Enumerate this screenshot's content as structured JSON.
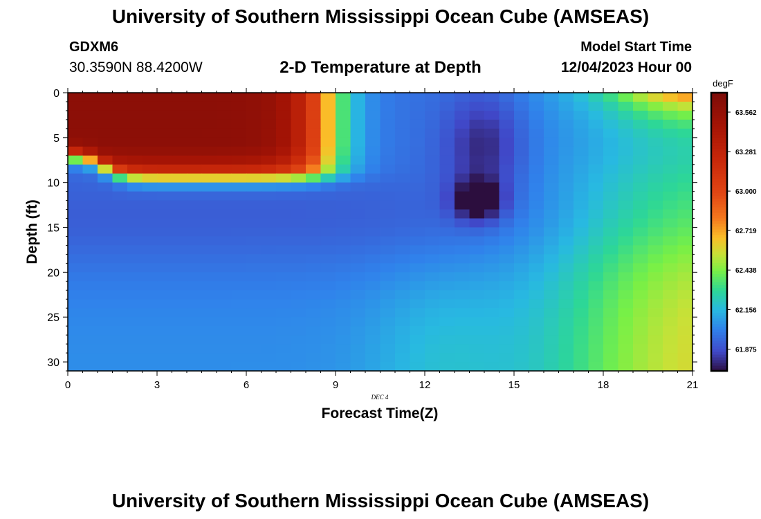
{
  "header": {
    "title": "University of Southern Mississippi Ocean Cube (AMSEAS)",
    "station_id": "GDXM6",
    "location": "30.3590N  88.4200W",
    "plot_title": "2-D Temperature at Depth",
    "model_start_label": "Model Start Time",
    "model_start_value": "12/04/2023 Hour 00"
  },
  "footer": {
    "title": "University of Southern Mississippi Ocean Cube (AMSEAS)"
  },
  "chart_data": {
    "type": "heatmap",
    "title": "2-D Temperature at Depth",
    "xlabel": "Forecast Time(Z)",
    "ylabel": "Depth (ft)",
    "date_label": "DEC 4",
    "xlim": [
      0,
      21
    ],
    "ylim": [
      31,
      0
    ],
    "x_ticks": [
      0,
      3,
      6,
      9,
      12,
      15,
      18,
      21
    ],
    "y_ticks": [
      0,
      5,
      10,
      15,
      20,
      25,
      30
    ],
    "colorbar": {
      "unit": "degF",
      "range": [
        61.72,
        63.7
      ],
      "tick_values": [
        61.875,
        62.156,
        62.438,
        62.719,
        63.0,
        63.281,
        63.562
      ],
      "tick_labels": [
        "61.875",
        "62.156",
        "62.438",
        "62.719",
        "63.000",
        "63.281",
        "63.562"
      ]
    },
    "grid_size": {
      "nx": 42,
      "ny": 31,
      "x_step": 0.5,
      "depth_step": 1
    },
    "surface_layer": {
      "warm_core_degF": 63.6,
      "mixed_layer_depth_ft": 9.5,
      "warm_until_hour": 9.0
    },
    "bottom_layer": {
      "early_degF": 62.05,
      "late_degF": 62.55,
      "peak_hour": 21
    },
    "cold_intrusion": {
      "center_hour": 13.8,
      "center_depth_ft": 12,
      "min_degF": 61.72
    },
    "late_surface_degF": 62.5
  }
}
